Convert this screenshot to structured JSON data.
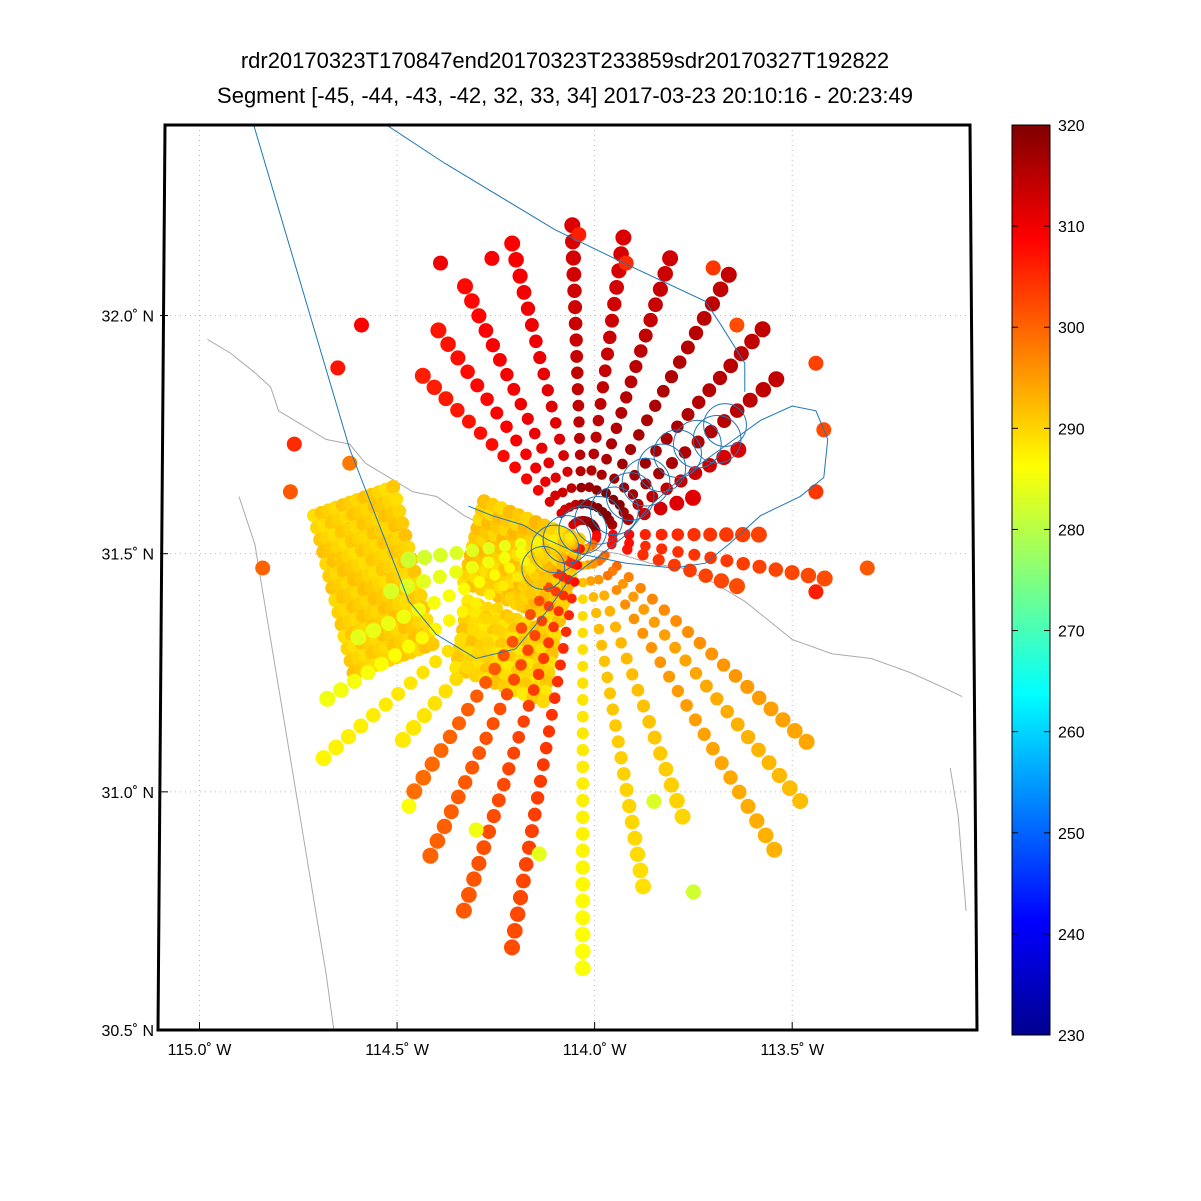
{
  "chart_data": {
    "type": "scatter",
    "title": "rdr20170323T170847end20170323T233859sdr20170327T192822",
    "subtitle": "Segment [-45, -44, -43, -42, 32, 33, 34] 2017-03-23 20:10:16 - 20:23:49",
    "xlabel": "",
    "ylabel": "",
    "xlim": [
      -115.1,
      -113.05
    ],
    "ylim": [
      30.5,
      32.4
    ],
    "grid": true,
    "x_ticks": [
      {
        "value": -115.0,
        "label": "115.0˚ W"
      },
      {
        "value": -114.5,
        "label": "114.5˚ W"
      },
      {
        "value": -114.0,
        "label": "114.0˚ W"
      },
      {
        "value": -113.5,
        "label": "113.5˚ W"
      }
    ],
    "y_ticks": [
      {
        "value": 30.5,
        "label": "30.5˚ N"
      },
      {
        "value": 31.0,
        "label": "31.0˚ N"
      },
      {
        "value": 31.5,
        "label": "31.5˚ N"
      },
      {
        "value": 32.0,
        "label": "32.0˚ N"
      }
    ],
    "colorbar": {
      "min": 230,
      "max": 320,
      "ticks": [
        "230",
        "240",
        "250",
        "260",
        "270",
        "280",
        "290",
        "300",
        "310",
        "320"
      ],
      "colormap": "jet"
    },
    "radial_scan": {
      "center": [
        -114.03,
        31.54
      ],
      "rays": [
        [
          72,
          0.22,
          315
        ],
        [
          62,
          0.35,
          316
        ],
        [
          52,
          0.5,
          318
        ],
        [
          42,
          0.55,
          318
        ],
        [
          30,
          0.6,
          318
        ],
        [
          18,
          0.58,
          317
        ],
        [
          8,
          0.6,
          316
        ],
        [
          -2,
          0.62,
          316
        ],
        [
          -14,
          0.6,
          313
        ],
        [
          -26,
          0.55,
          312
        ],
        [
          -36,
          0.5,
          311
        ],
        [
          -46,
          0.45,
          310
        ],
        [
          90,
          0.35,
          307
        ],
        [
          100,
          0.5,
          306
        ],
        [
          108,
          0.32,
          306
        ],
        [
          132,
          0.62,
          298
        ],
        [
          140,
          0.7,
          296
        ],
        [
          148,
          0.75,
          297
        ],
        [
          160,
          0.6,
          294
        ],
        [
          170,
          0.72,
          293
        ],
        [
          180,
          0.88,
          290
        ],
        [
          190,
          0.85,
          306
        ],
        [
          198,
          0.8,
          305
        ],
        [
          206,
          0.72,
          304
        ],
        [
          214,
          0.62,
          303
        ],
        [
          222,
          0.55,
          292
        ],
        [
          230,
          0.7,
          291
        ],
        [
          238,
          0.62,
          289
        ],
        [
          246,
          0.5,
          288
        ],
        [
          254,
          0.4,
          287
        ],
        [
          262,
          0.35,
          286
        ]
      ]
    },
    "outer_points": [
      {
        "x": -114.39,
        "y": 32.11,
        "v": 310
      },
      {
        "x": -114.26,
        "y": 32.12,
        "v": 309
      },
      {
        "x": -114.04,
        "y": 32.17,
        "v": 306
      },
      {
        "x": -113.92,
        "y": 32.11,
        "v": 305
      },
      {
        "x": -113.7,
        "y": 32.1,
        "v": 304
      },
      {
        "x": -113.64,
        "y": 31.98,
        "v": 302
      },
      {
        "x": -113.44,
        "y": 31.9,
        "v": 303
      },
      {
        "x": -113.42,
        "y": 31.76,
        "v": 302
      },
      {
        "x": -113.44,
        "y": 31.63,
        "v": 304
      },
      {
        "x": -113.31,
        "y": 31.47,
        "v": 301
      },
      {
        "x": -113.44,
        "y": 31.42,
        "v": 306
      },
      {
        "x": -114.59,
        "y": 31.98,
        "v": 309
      },
      {
        "x": -114.65,
        "y": 31.89,
        "v": 307
      },
      {
        "x": -114.76,
        "y": 31.73,
        "v": 305
      },
      {
        "x": -114.77,
        "y": 31.63,
        "v": 301
      },
      {
        "x": -114.84,
        "y": 31.47,
        "v": 300
      },
      {
        "x": -114.62,
        "y": 31.69,
        "v": 298
      },
      {
        "x": -113.75,
        "y": 30.79,
        "v": 282
      },
      {
        "x": -113.85,
        "y": 30.98,
        "v": 283
      },
      {
        "x": -114.14,
        "y": 30.87,
        "v": 284
      },
      {
        "x": -114.3,
        "y": 30.92,
        "v": 285
      },
      {
        "x": -114.47,
        "y": 30.97,
        "v": 286
      }
    ],
    "grid_blocks": [
      {
        "corner": [
          -114.71,
          31.58
        ],
        "u": [
          0.2,
          0.06
        ],
        "v": [
          0.1,
          -0.33
        ],
        "nu": 12,
        "nv": 14,
        "vmin": 289,
        "vmax": 292
      },
      {
        "corner": [
          -114.33,
          31.44
        ],
        "u": [
          0.24,
          -0.08
        ],
        "v": [
          0.05,
          0.17
        ],
        "nu": 12,
        "nv": 10,
        "vmin": 289,
        "vmax": 293
      },
      {
        "corner": [
          -114.32,
          31.4
        ],
        "u": [
          0.22,
          -0.07
        ],
        "v": [
          -0.03,
          -0.14
        ],
        "nu": 10,
        "nv": 8,
        "vmin": 288,
        "vmax": 292
      }
    ],
    "flight_track": [
      [
        -114.87,
        32.42
      ],
      [
        -114.62,
        31.72
      ],
      [
        -114.47,
        31.4
      ],
      [
        -114.4,
        31.33
      ],
      [
        -114.3,
        31.28
      ],
      [
        -114.2,
        31.3
      ],
      [
        -114.12,
        31.38
      ],
      [
        -114.06,
        31.45
      ],
      [
        -113.98,
        31.5
      ],
      [
        -113.92,
        31.54
      ],
      [
        -113.86,
        31.6
      ],
      [
        -113.78,
        31.66
      ],
      [
        -113.68,
        31.72
      ],
      [
        -113.58,
        31.78
      ],
      [
        -113.5,
        31.81
      ],
      [
        -113.44,
        31.8
      ],
      [
        -113.41,
        31.74
      ],
      [
        -113.42,
        31.66
      ],
      [
        -113.48,
        31.62
      ],
      [
        -113.58,
        31.58
      ],
      [
        -113.66,
        31.52
      ],
      [
        -113.72,
        31.48
      ],
      [
        -113.8,
        31.47
      ],
      [
        -113.92,
        31.48
      ],
      [
        -114.04,
        31.5
      ],
      [
        -114.12,
        31.53
      ],
      [
        -114.18,
        31.56
      ],
      [
        -114.26,
        31.58
      ],
      [
        -114.32,
        31.6
      ]
    ],
    "flight_track_2": [
      [
        -114.6,
        32.44
      ],
      [
        -114.38,
        32.32
      ],
      [
        -114.1,
        32.18
      ],
      [
        -113.9,
        32.1
      ],
      [
        -113.72,
        32.03
      ],
      [
        -113.68,
        31.98
      ],
      [
        -113.62,
        31.9
      ],
      [
        -113.62,
        31.84
      ]
    ],
    "orbit_circles": [
      {
        "x": -113.67,
        "y": 31.77,
        "r": 0.045
      },
      {
        "x": -113.69,
        "y": 31.74,
        "r": 0.05
      },
      {
        "x": -113.74,
        "y": 31.73,
        "r": 0.05
      },
      {
        "x": -113.79,
        "y": 31.71,
        "r": 0.05
      },
      {
        "x": -113.83,
        "y": 31.68,
        "r": 0.05
      },
      {
        "x": -113.87,
        "y": 31.65,
        "r": 0.05
      },
      {
        "x": -113.91,
        "y": 31.62,
        "r": 0.05
      },
      {
        "x": -113.95,
        "y": 31.59,
        "r": 0.05
      },
      {
        "x": -113.99,
        "y": 31.57,
        "r": 0.05
      },
      {
        "x": -114.03,
        "y": 31.55,
        "r": 0.05
      },
      {
        "x": -114.07,
        "y": 31.53,
        "r": 0.05
      },
      {
        "x": -114.1,
        "y": 31.51,
        "r": 0.05
      },
      {
        "x": -114.13,
        "y": 31.47,
        "r": 0.045
      }
    ],
    "coastline": [
      [
        [
          -114.98,
          31.95
        ],
        [
          -114.92,
          31.92
        ],
        [
          -114.86,
          31.88
        ],
        [
          -114.82,
          31.85
        ],
        [
          -114.8,
          31.8
        ],
        [
          -114.74,
          31.77
        ],
        [
          -114.68,
          31.74
        ],
        [
          -114.62,
          31.73
        ],
        [
          -114.58,
          31.69
        ],
        [
          -114.52,
          31.66
        ],
        [
          -114.46,
          31.63
        ],
        [
          -114.4,
          31.62
        ],
        [
          -114.33,
          31.58
        ],
        [
          -114.26,
          31.55
        ],
        [
          -114.18,
          31.53
        ],
        [
          -114.1,
          31.52
        ],
        [
          -114.02,
          31.51
        ],
        [
          -113.94,
          31.5
        ],
        [
          -113.86,
          31.48
        ],
        [
          -113.78,
          31.47
        ],
        [
          -113.7,
          31.44
        ],
        [
          -113.62,
          31.4
        ],
        [
          -113.56,
          31.36
        ],
        [
          -113.5,
          31.32
        ],
        [
          -113.4,
          31.29
        ],
        [
          -113.3,
          31.28
        ],
        [
          -113.2,
          31.25
        ],
        [
          -113.12,
          31.22
        ],
        [
          -113.07,
          31.2
        ]
      ],
      [
        [
          -114.9,
          31.62
        ],
        [
          -114.86,
          31.52
        ],
        [
          -114.84,
          31.42
        ],
        [
          -114.82,
          31.32
        ],
        [
          -114.8,
          31.22
        ],
        [
          -114.78,
          31.12
        ],
        [
          -114.76,
          31.02
        ],
        [
          -114.74,
          30.92
        ],
        [
          -114.72,
          30.82
        ],
        [
          -114.7,
          30.72
        ],
        [
          -114.68,
          30.62
        ],
        [
          -114.66,
          30.5
        ]
      ],
      [
        [
          -113.1,
          31.05
        ],
        [
          -113.08,
          30.95
        ],
        [
          -113.07,
          30.85
        ],
        [
          -113.06,
          30.75
        ]
      ]
    ]
  }
}
